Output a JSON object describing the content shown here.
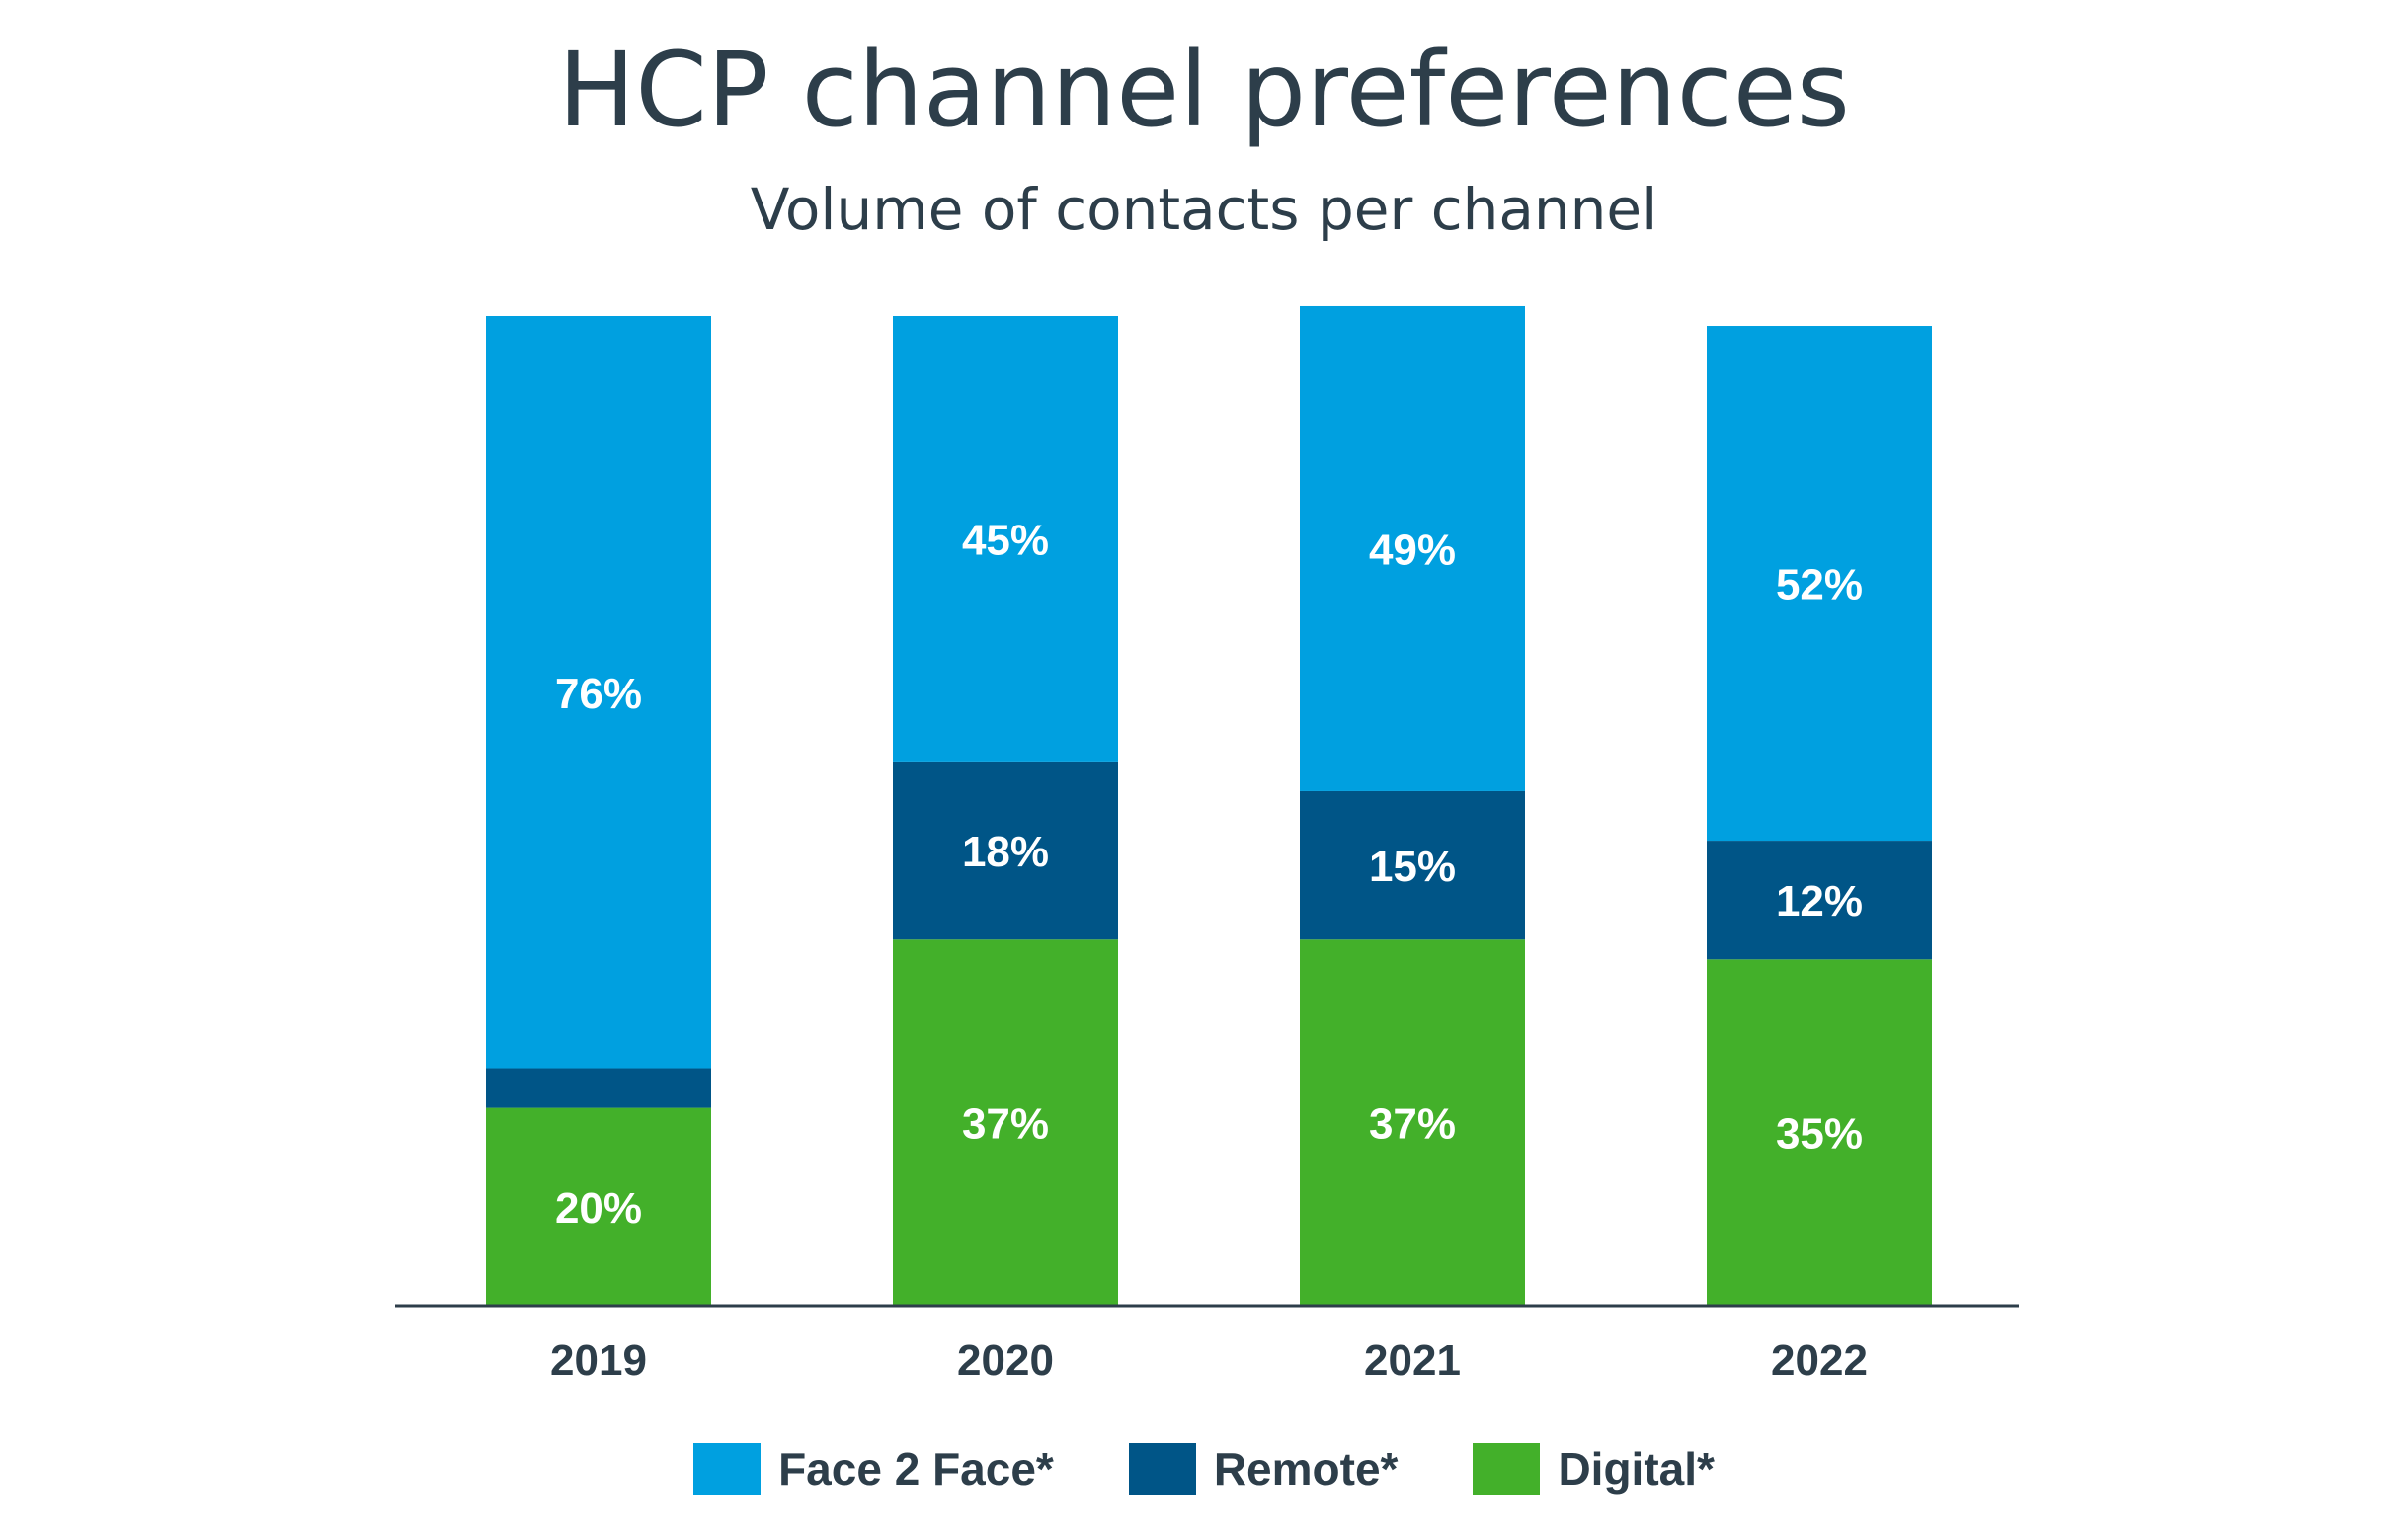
{
  "chart_data": {
    "type": "bar",
    "stacked": true,
    "title": "HCP channel preferences",
    "subtitle": "Volume of contacts per channel",
    "categories": [
      "2019",
      "2020",
      "2021",
      "2022"
    ],
    "series": [
      {
        "name": "Digital*",
        "color": "#43b02a",
        "values": [
          20,
          37,
          37,
          35
        ],
        "labels": [
          "20%",
          "37%",
          "37%",
          "35%"
        ]
      },
      {
        "name": "Remote*",
        "color": "#005587",
        "values": [
          4,
          18,
          15,
          12
        ],
        "labels": [
          "",
          "18%",
          "15%",
          "12%"
        ]
      },
      {
        "name": "Face 2 Face*",
        "color": "#00a0e0",
        "values": [
          76,
          45,
          49,
          52
        ],
        "labels": [
          "76%",
          "45%",
          "49%",
          "52%"
        ]
      }
    ],
    "legend_order": [
      "Face 2 Face*",
      "Remote*",
      "Digital*"
    ],
    "ylim": [
      0,
      100
    ],
    "grid": false,
    "legend_position": "bottom"
  }
}
